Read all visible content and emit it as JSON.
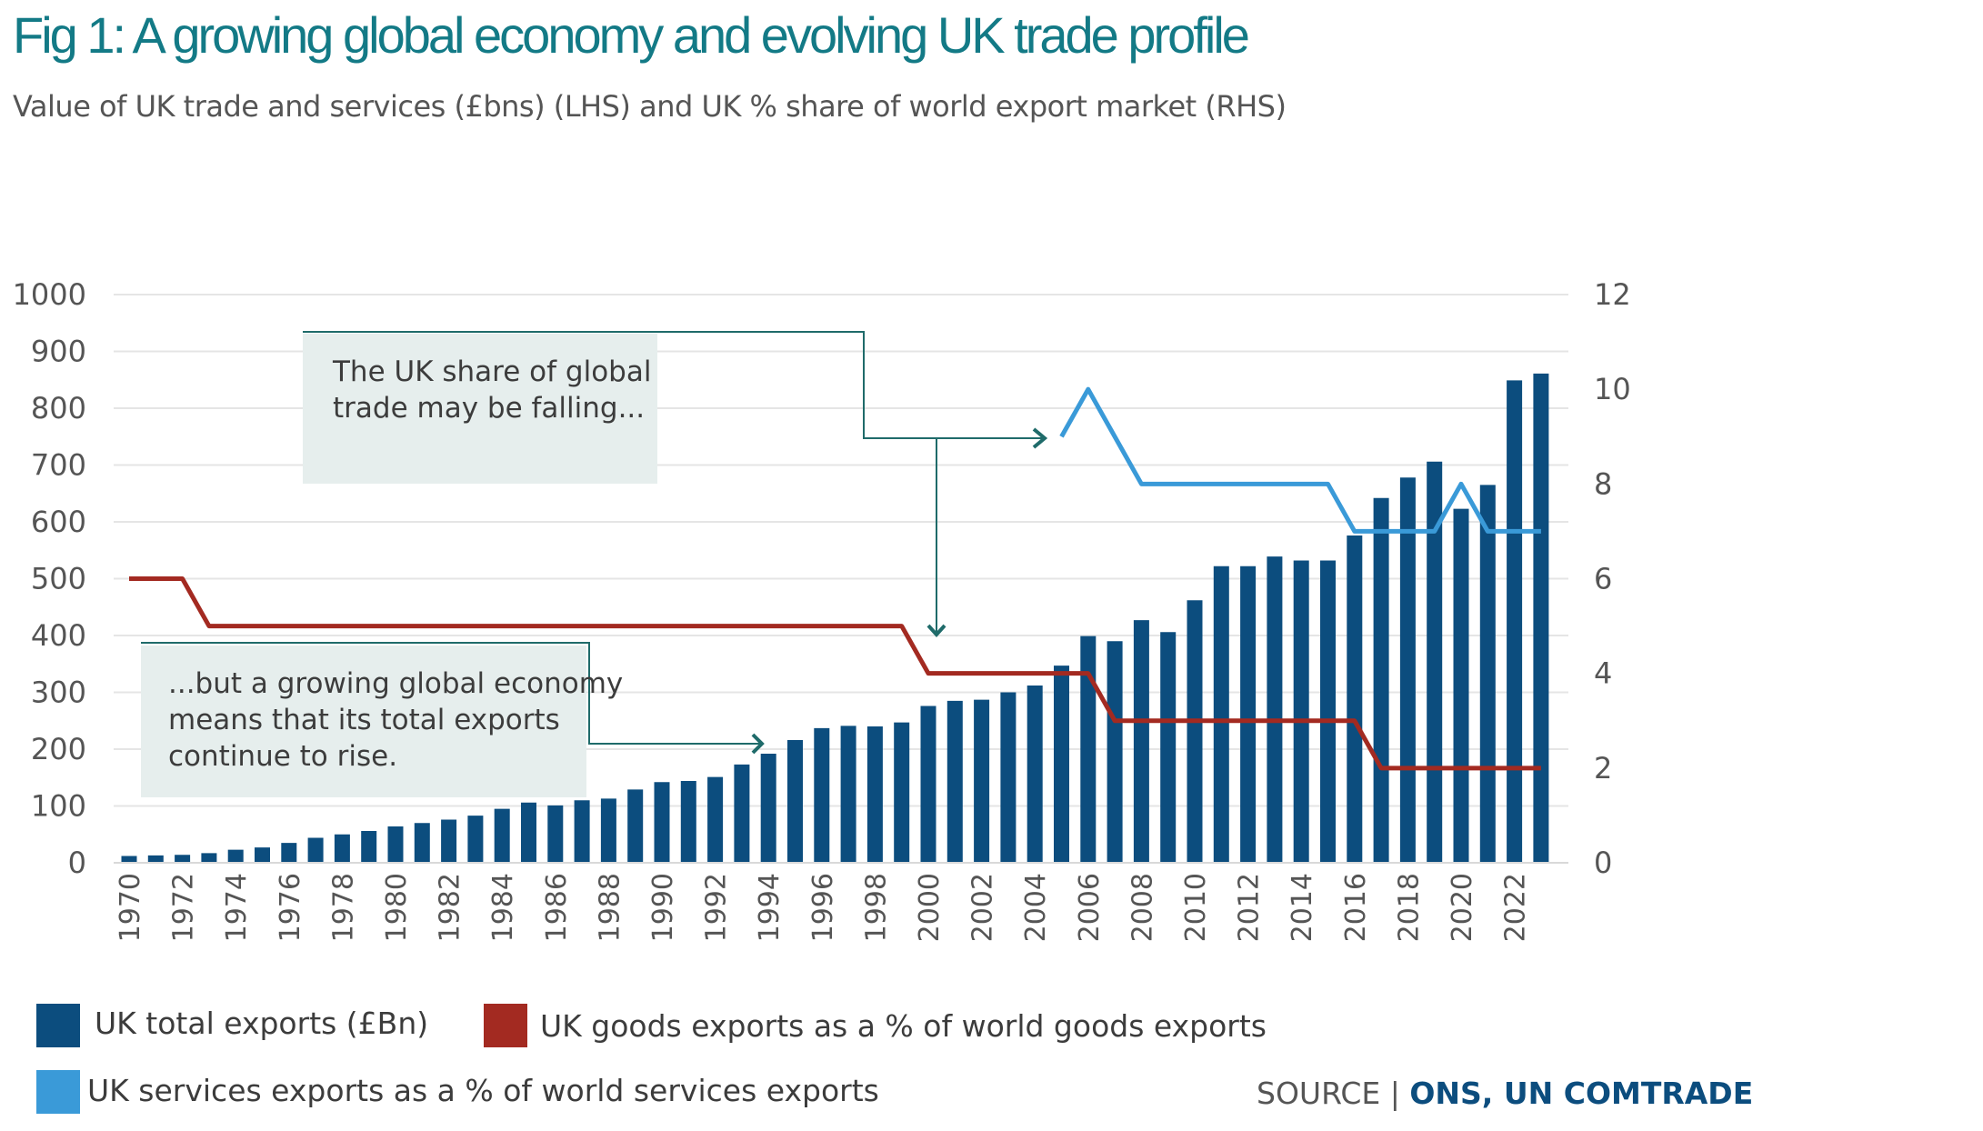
{
  "title": "Fig 1: A growing global economy and evolving UK trade profile",
  "subtitle": "Value of UK trade and services (£bns) (LHS) and UK % share of world export market (RHS)",
  "colors": {
    "bars": "#0c4d7e",
    "goods_line": "#a32a21",
    "services_line": "#3a9ad8",
    "annotation_box": "#e6eeed",
    "annotation_line": "#1f6b6a",
    "gridline": "#e5e5e5",
    "axis_text": "#555555"
  },
  "chart_data": {
    "type": "bar",
    "categories": [
      "1970",
      "1971",
      "1972",
      "1973",
      "1974",
      "1975",
      "1976",
      "1977",
      "1978",
      "1979",
      "1980",
      "1981",
      "1982",
      "1983",
      "1984",
      "1985",
      "1986",
      "1987",
      "1988",
      "1989",
      "1990",
      "1991",
      "1992",
      "1993",
      "1994",
      "1995",
      "1996",
      "1997",
      "1998",
      "1999",
      "2000",
      "2001",
      "2002",
      "2003",
      "2004",
      "2005",
      "2006",
      "2007",
      "2008",
      "2009",
      "2010",
      "2011",
      "2012",
      "2013",
      "2014",
      "2015",
      "2016",
      "2017",
      "2018",
      "2019",
      "2020",
      "2021",
      "2022",
      "2023"
    ],
    "x_tick_labels": [
      "1970",
      "1972",
      "1974",
      "1976",
      "1978",
      "1980",
      "1982",
      "1984",
      "1986",
      "1988",
      "1990",
      "1992",
      "1994",
      "1996",
      "1998",
      "2000",
      "2002",
      "2004",
      "2006",
      "2008",
      "2010",
      "2012",
      "2014",
      "2016",
      "2018",
      "2020",
      "2022"
    ],
    "series": [
      {
        "name": "UK total exports (£Bn)",
        "type": "bar",
        "axis": "left",
        "values": [
          12,
          13,
          14,
          17,
          23,
          27,
          35,
          44,
          50,
          56,
          64,
          70,
          76,
          83,
          95,
          106,
          101,
          110,
          113,
          129,
          142,
          144,
          151,
          173,
          192,
          216,
          237,
          241,
          240,
          247,
          276,
          285,
          287,
          300,
          312,
          347,
          399,
          390,
          427,
          406,
          462,
          522,
          522,
          539,
          532,
          532,
          576,
          642,
          678,
          706,
          623,
          665,
          849,
          861
        ]
      },
      {
        "name": "UK goods exports as a % of world goods exports",
        "type": "line",
        "axis": "right",
        "x": [
          "1970",
          "1972",
          "1973",
          "1999",
          "2000",
          "2006",
          "2007",
          "2016",
          "2017",
          "2023"
        ],
        "values": [
          6,
          6,
          5,
          5,
          4,
          4,
          3,
          3,
          2,
          2
        ]
      },
      {
        "name": "UK services exports as a % of world services exports",
        "type": "line",
        "axis": "right",
        "x": [
          "2005",
          "2006",
          "2008",
          "2015",
          "2016",
          "2019",
          "2020",
          "2021",
          "2023"
        ],
        "values": [
          9,
          10,
          8,
          8,
          7,
          7,
          8,
          7,
          7
        ]
      }
    ],
    "left_axis": {
      "ylim": [
        0,
        1000
      ],
      "ticks": [
        0,
        100,
        200,
        300,
        400,
        500,
        600,
        700,
        800,
        900,
        1000
      ]
    },
    "right_axis": {
      "ylim": [
        0,
        12
      ],
      "ticks": [
        0,
        2,
        4,
        6,
        8,
        10,
        12
      ]
    },
    "grid": true,
    "legend_position": "bottom-left",
    "annotations": [
      {
        "lines": [
          "The UK share of global",
          "trade may be falling..."
        ]
      },
      {
        "lines": [
          "...but a growing global economy",
          "means that its total exports",
          "continue to rise."
        ]
      }
    ]
  },
  "legend": [
    {
      "label": "UK total exports (£Bn)"
    },
    {
      "label": "UK goods exports as a % of world goods exports"
    },
    {
      "label": "UK services exports as a % of world services exports"
    }
  ],
  "source": {
    "prefix": "SOURCE  |  ",
    "value": "ONS, UN COMTRADE"
  }
}
